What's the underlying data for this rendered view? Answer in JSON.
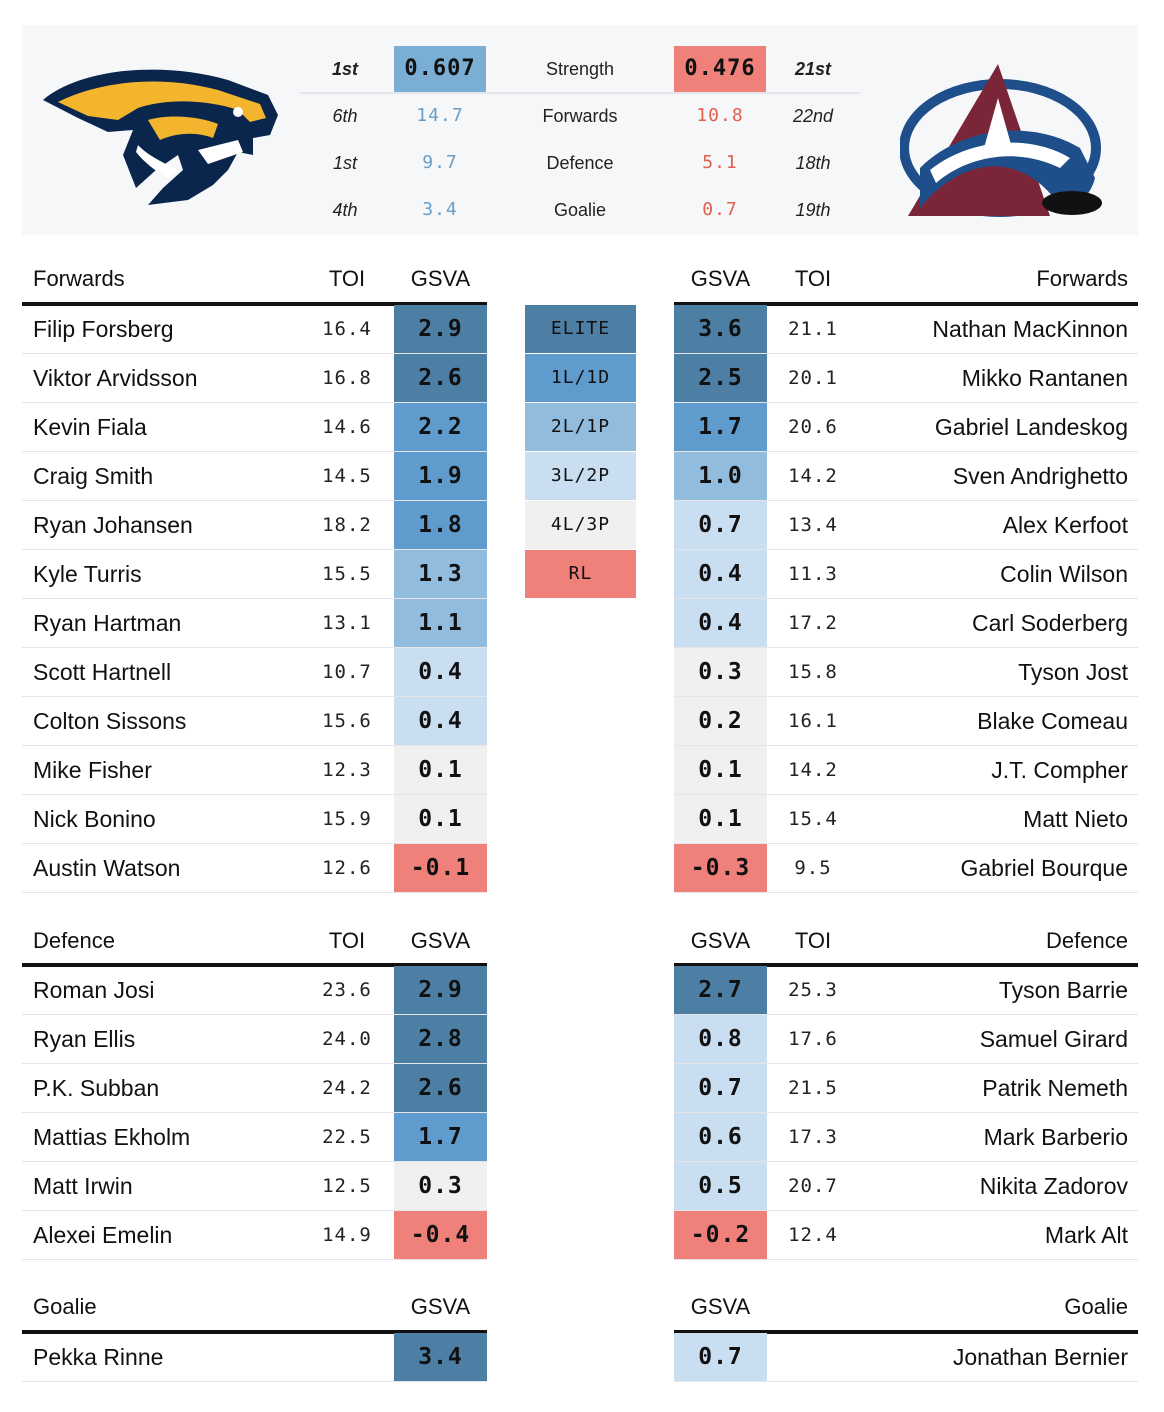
{
  "colors": {
    "elite": "#4d7fa5",
    "l1": "#5f9ccd",
    "l2": "#91bcde",
    "l3": "#c9def0",
    "l4": "#f0f0f0",
    "rl": "#f0807a",
    "home_accent": "#7aaed4",
    "away_accent": "#f0807a",
    "home_text": "#6a9ec6",
    "away_text": "#e06050"
  },
  "summary": [
    {
      "label": "Strength",
      "home_rank": "1st",
      "home_value": "0.607",
      "away_value": "0.476",
      "away_rank": "21st"
    },
    {
      "label": "Forwards",
      "home_rank": "6th",
      "home_value": "14.7",
      "away_value": "10.8",
      "away_rank": "22nd"
    },
    {
      "label": "Defence",
      "home_rank": "1st",
      "home_value": "9.7",
      "away_value": "5.1",
      "away_rank": "18th"
    },
    {
      "label": "Goalie",
      "home_rank": "4th",
      "home_value": "3.4",
      "away_value": "0.7",
      "away_rank": "19th"
    }
  ],
  "logos": {
    "home": "predators-logo-icon",
    "away": "avalanche-logo-icon"
  },
  "legend": [
    {
      "label": "ELITE",
      "tier": "elite"
    },
    {
      "label": "1L/1D",
      "tier": "l1"
    },
    {
      "label": "2L/1P",
      "tier": "l2"
    },
    {
      "label": "3L/2P",
      "tier": "l3"
    },
    {
      "label": "4L/3P",
      "tier": "l4"
    },
    {
      "label": "RL",
      "tier": "rl"
    }
  ],
  "headers": {
    "forwards": "Forwards",
    "defence": "Defence",
    "goalie": "Goalie",
    "toi": "TOI",
    "gsva": "GSVA"
  },
  "home": {
    "forwards": [
      {
        "name": "Filip Forsberg",
        "toi": "16.4",
        "gsva": "2.9",
        "tier": "elite"
      },
      {
        "name": "Viktor Arvidsson",
        "toi": "16.8",
        "gsva": "2.6",
        "tier": "elite"
      },
      {
        "name": "Kevin Fiala",
        "toi": "14.6",
        "gsva": "2.2",
        "tier": "l1"
      },
      {
        "name": "Craig Smith",
        "toi": "14.5",
        "gsva": "1.9",
        "tier": "l1"
      },
      {
        "name": "Ryan Johansen",
        "toi": "18.2",
        "gsva": "1.8",
        "tier": "l1"
      },
      {
        "name": "Kyle Turris",
        "toi": "15.5",
        "gsva": "1.3",
        "tier": "l2"
      },
      {
        "name": "Ryan Hartman",
        "toi": "13.1",
        "gsva": "1.1",
        "tier": "l2"
      },
      {
        "name": "Scott Hartnell",
        "toi": "10.7",
        "gsva": "0.4",
        "tier": "l3"
      },
      {
        "name": "Colton Sissons",
        "toi": "15.6",
        "gsva": "0.4",
        "tier": "l3"
      },
      {
        "name": "Mike Fisher",
        "toi": "12.3",
        "gsva": "0.1",
        "tier": "l4"
      },
      {
        "name": "Nick Bonino",
        "toi": "15.9",
        "gsva": "0.1",
        "tier": "l4"
      },
      {
        "name": "Austin Watson",
        "toi": "12.6",
        "gsva": "-0.1",
        "tier": "rl"
      }
    ],
    "defence": [
      {
        "name": "Roman Josi",
        "toi": "23.6",
        "gsva": "2.9",
        "tier": "elite"
      },
      {
        "name": "Ryan Ellis",
        "toi": "24.0",
        "gsva": "2.8",
        "tier": "elite"
      },
      {
        "name": "P.K. Subban",
        "toi": "24.2",
        "gsva": "2.6",
        "tier": "elite"
      },
      {
        "name": "Mattias Ekholm",
        "toi": "22.5",
        "gsva": "1.7",
        "tier": "l1"
      },
      {
        "name": "Matt Irwin",
        "toi": "12.5",
        "gsva": "0.3",
        "tier": "l4"
      },
      {
        "name": "Alexei Emelin",
        "toi": "14.9",
        "gsva": "-0.4",
        "tier": "rl"
      }
    ],
    "goalie": [
      {
        "name": "Pekka Rinne",
        "gsva": "3.4",
        "tier": "elite"
      }
    ]
  },
  "away": {
    "forwards": [
      {
        "name": "Nathan MacKinnon",
        "toi": "21.1",
        "gsva": "3.6",
        "tier": "elite"
      },
      {
        "name": "Mikko Rantanen",
        "toi": "20.1",
        "gsva": "2.5",
        "tier": "elite"
      },
      {
        "name": "Gabriel Landeskog",
        "toi": "20.6",
        "gsva": "1.7",
        "tier": "l1"
      },
      {
        "name": "Sven Andrighetto",
        "toi": "14.2",
        "gsva": "1.0",
        "tier": "l2"
      },
      {
        "name": "Alex Kerfoot",
        "toi": "13.4",
        "gsva": "0.7",
        "tier": "l3"
      },
      {
        "name": "Colin Wilson",
        "toi": "11.3",
        "gsva": "0.4",
        "tier": "l3"
      },
      {
        "name": "Carl Soderberg",
        "toi": "17.2",
        "gsva": "0.4",
        "tier": "l3"
      },
      {
        "name": "Tyson Jost",
        "toi": "15.8",
        "gsva": "0.3",
        "tier": "l4"
      },
      {
        "name": "Blake Comeau",
        "toi": "16.1",
        "gsva": "0.2",
        "tier": "l4"
      },
      {
        "name": "J.T. Compher",
        "toi": "14.2",
        "gsva": "0.1",
        "tier": "l4"
      },
      {
        "name": "Matt Nieto",
        "toi": "15.4",
        "gsva": "0.1",
        "tier": "l4"
      },
      {
        "name": "Gabriel Bourque",
        "toi": "9.5",
        "gsva": "-0.3",
        "tier": "rl"
      }
    ],
    "defence": [
      {
        "name": "Tyson Barrie",
        "toi": "25.3",
        "gsva": "2.7",
        "tier": "elite"
      },
      {
        "name": "Samuel Girard",
        "toi": "17.6",
        "gsva": "0.8",
        "tier": "l3"
      },
      {
        "name": "Patrik Nemeth",
        "toi": "21.5",
        "gsva": "0.7",
        "tier": "l3"
      },
      {
        "name": "Mark Barberio",
        "toi": "17.3",
        "gsva": "0.6",
        "tier": "l3"
      },
      {
        "name": "Nikita Zadorov",
        "toi": "20.7",
        "gsva": "0.5",
        "tier": "l3"
      },
      {
        "name": "Mark Alt",
        "toi": "12.4",
        "gsva": "-0.2",
        "tier": "rl"
      }
    ],
    "goalie": [
      {
        "name": "Jonathan Bernier",
        "gsva": "0.7",
        "tier": "l3"
      }
    ]
  }
}
